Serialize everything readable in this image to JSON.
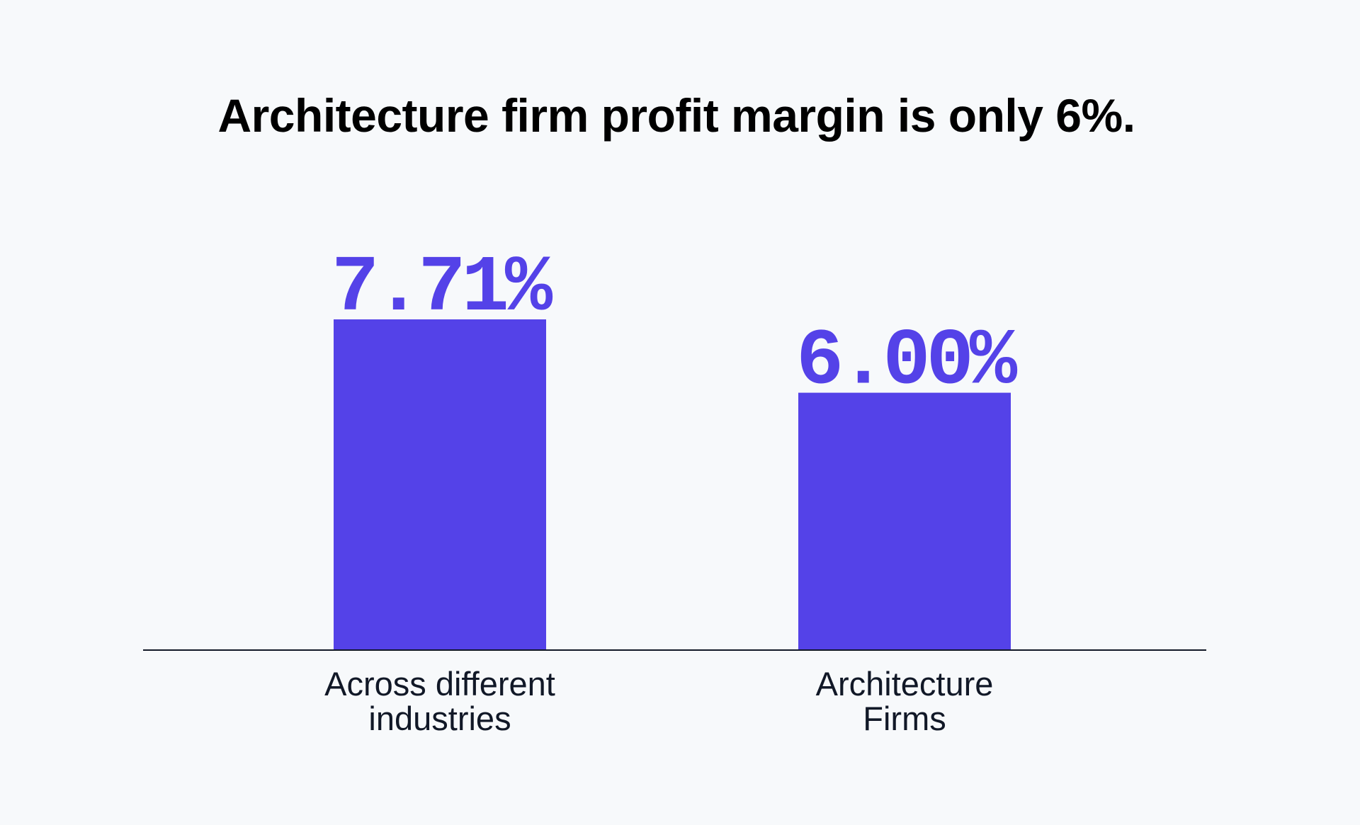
{
  "chart_data": {
    "type": "bar",
    "title": "Architecture firm profit margin is only 6%.",
    "categories": [
      [
        "Across different",
        "industries"
      ],
      [
        "Architecture",
        "Firms"
      ]
    ],
    "values": [
      7.71,
      6.0
    ],
    "value_labels": [
      "7.71%",
      "6.00%"
    ],
    "xlabel": "",
    "ylabel": "",
    "ylim": [
      0,
      7.71
    ],
    "grid": false,
    "legend": "none"
  },
  "colors": {
    "bar": "#5442e8",
    "value_label": "#5442e8",
    "axis": "#111827",
    "background": "#f7f9fb"
  }
}
